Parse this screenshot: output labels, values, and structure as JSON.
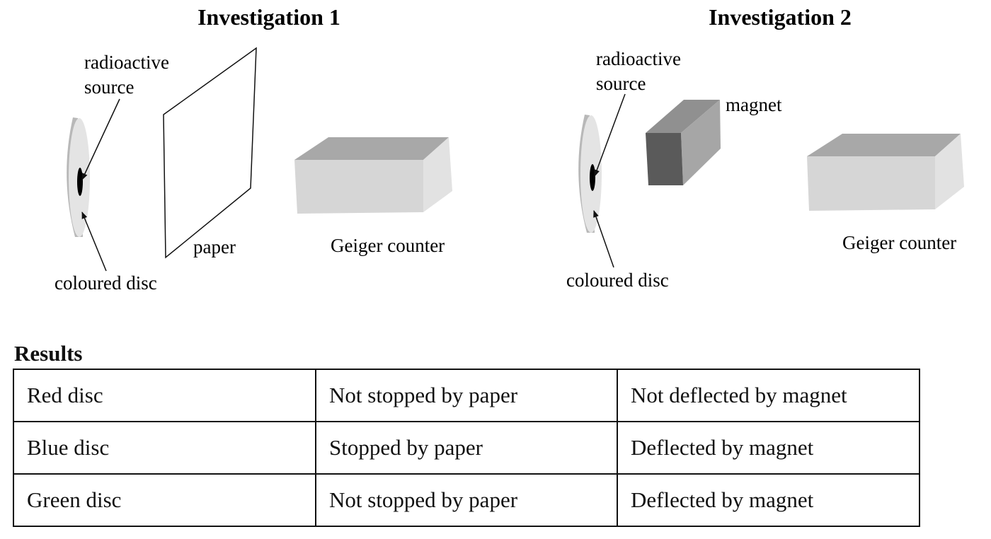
{
  "investigation1": {
    "title": "Investigation 1",
    "labels": {
      "source_line1": "radioactive",
      "source_line2": "source",
      "paper": "paper",
      "detector": "Geiger counter",
      "disc": "coloured disc"
    }
  },
  "investigation2": {
    "title": "Investigation 2",
    "labels": {
      "source_line1": "radioactive",
      "source_line2": "source",
      "magnet": "magnet",
      "detector": "Geiger counter",
      "disc": "coloured disc"
    }
  },
  "results": {
    "title": "Results",
    "rows": [
      [
        "Red disc",
        "Not stopped by paper",
        "Not deflected by magnet"
      ],
      [
        "Blue disc",
        "Stopped by paper",
        "Deflected by magnet"
      ],
      [
        "Green disc",
        "Not stopped by paper",
        "Deflected by magnet"
      ]
    ]
  },
  "colors": {
    "disc_face": "#e4e4e4",
    "disc_rim": "#b8b8b8",
    "counter_top": "#a8a8a8",
    "counter_front": "#d6d6d6",
    "counter_side": "#e2e2e2",
    "magnet_front": "#5a5a5a",
    "magnet_top": "#909090",
    "magnet_side": "#a6a6a6"
  }
}
